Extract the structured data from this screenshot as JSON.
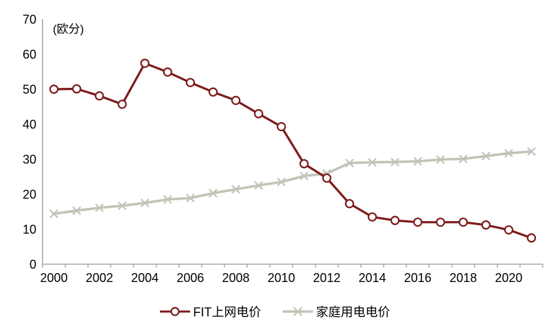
{
  "unit_label": "(欧分)",
  "colors": {
    "fit": "#7d1a1b",
    "household": "#c3c3b6",
    "axis": "#a6a6a6",
    "text": "#000000",
    "marker_fill": "#ffffff"
  },
  "legend": {
    "fit": "FIT上网电价",
    "household": "家庭用电电价"
  },
  "chart_data": {
    "type": "line",
    "title": "",
    "ylabel": "(欧分)",
    "xlabel": "",
    "ylim": [
      0,
      70
    ],
    "ytick_step": 10,
    "ytick_labels": [
      "0",
      "10",
      "20",
      "30",
      "40",
      "50",
      "60",
      "70"
    ],
    "x": [
      2000,
      2001,
      2002,
      2003,
      2004,
      2005,
      2006,
      2007,
      2008,
      2009,
      2010,
      2011,
      2012,
      2013,
      2014,
      2015,
      2016,
      2017,
      2018,
      2019,
      2020,
      2021
    ],
    "xtick_label_every": 2,
    "xtick_labels": [
      "2000",
      "2002",
      "2004",
      "2006",
      "2008",
      "2010",
      "2012",
      "2014",
      "2016",
      "2018",
      "2020"
    ],
    "grid": false,
    "legend_position": "bottom",
    "series": [
      {
        "name": "家庭用电电价",
        "marker": "x",
        "color_key": "household",
        "values": [
          14.4,
          15.3,
          16.1,
          16.7,
          17.5,
          18.5,
          18.9,
          20.3,
          21.4,
          22.5,
          23.5,
          25.2,
          25.9,
          28.9,
          29.1,
          29.2,
          29.4,
          29.9,
          30.1,
          30.9,
          31.7,
          32.2
        ]
      },
      {
        "name": "FIT上网电价",
        "marker": "circle",
        "color_key": "fit",
        "values": [
          50.0,
          50.1,
          48.1,
          45.7,
          57.4,
          54.9,
          51.9,
          49.2,
          46.8,
          43.0,
          39.3,
          28.7,
          24.6,
          17.3,
          13.5,
          12.5,
          12.0,
          12.0,
          12.0,
          11.2,
          9.8,
          7.5
        ]
      }
    ]
  }
}
